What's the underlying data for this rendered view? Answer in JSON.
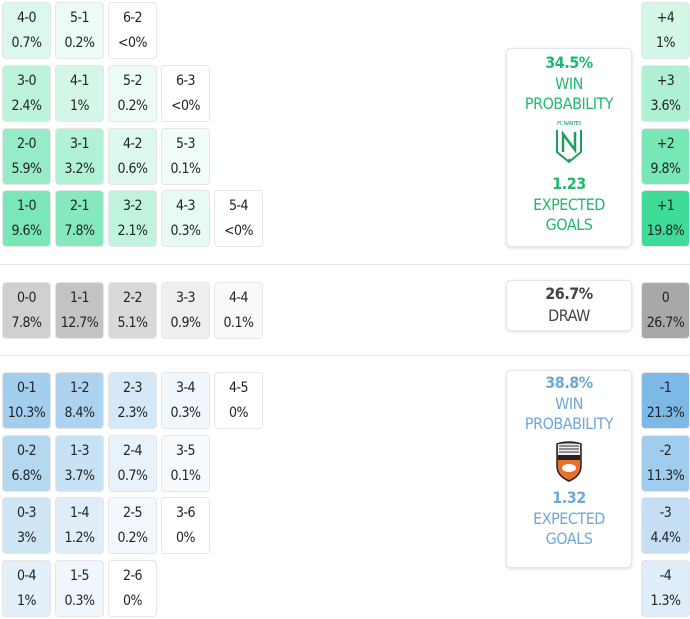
{
  "colors": {
    "home": "#3ddc97",
    "away": "#7ab8e6",
    "draw": "#a8a8a8",
    "home_text": "#22b86e",
    "away_text": "#6fa8d8",
    "draw_text": "#444444"
  },
  "home": {
    "rows": [
      [
        {
          "score": "4-0",
          "pct": "0.7%"
        },
        {
          "score": "5-1",
          "pct": "0.2%"
        },
        {
          "score": "6-2",
          "pct": "<0%"
        }
      ],
      [
        {
          "score": "3-0",
          "pct": "2.4%"
        },
        {
          "score": "4-1",
          "pct": "1%"
        },
        {
          "score": "5-2",
          "pct": "0.2%"
        },
        {
          "score": "6-3",
          "pct": "<0%"
        }
      ],
      [
        {
          "score": "2-0",
          "pct": "5.9%"
        },
        {
          "score": "3-1",
          "pct": "3.2%"
        },
        {
          "score": "4-2",
          "pct": "0.6%"
        },
        {
          "score": "5-3",
          "pct": "0.1%"
        }
      ],
      [
        {
          "score": "1-0",
          "pct": "9.6%"
        },
        {
          "score": "2-1",
          "pct": "7.8%"
        },
        {
          "score": "3-2",
          "pct": "2.1%"
        },
        {
          "score": "4-3",
          "pct": "0.3%"
        },
        {
          "score": "5-4",
          "pct": "<0%"
        }
      ]
    ],
    "margins": [
      {
        "label": "+4",
        "pct": "1%"
      },
      {
        "label": "+3",
        "pct": "3.6%"
      },
      {
        "label": "+2",
        "pct": "9.8%"
      },
      {
        "label": "+1",
        "pct": "19.8%"
      }
    ],
    "win_pct": "34.5%",
    "win_label": "WIN PROBABILITY",
    "team_logo_text": "FC NANTES",
    "xg": "1.23",
    "xg_label": "EXPECTED GOALS"
  },
  "draw": {
    "rows": [
      [
        {
          "score": "0-0",
          "pct": "7.8%"
        },
        {
          "score": "1-1",
          "pct": "12.7%"
        },
        {
          "score": "2-2",
          "pct": "5.1%"
        },
        {
          "score": "3-3",
          "pct": "0.9%"
        },
        {
          "score": "4-4",
          "pct": "0.1%"
        }
      ]
    ],
    "margins": [
      {
        "label": "0",
        "pct": "26.7%"
      }
    ],
    "pct": "26.7%",
    "label": "DRAW"
  },
  "away": {
    "rows": [
      [
        {
          "score": "0-1",
          "pct": "10.3%"
        },
        {
          "score": "1-2",
          "pct": "8.4%"
        },
        {
          "score": "2-3",
          "pct": "2.3%"
        },
        {
          "score": "3-4",
          "pct": "0.3%"
        },
        {
          "score": "4-5",
          "pct": "0%"
        }
      ],
      [
        {
          "score": "0-2",
          "pct": "6.8%"
        },
        {
          "score": "1-3",
          "pct": "3.7%"
        },
        {
          "score": "2-4",
          "pct": "0.7%"
        },
        {
          "score": "3-5",
          "pct": "0.1%"
        }
      ],
      [
        {
          "score": "0-3",
          "pct": "3%"
        },
        {
          "score": "1-4",
          "pct": "1.2%"
        },
        {
          "score": "2-5",
          "pct": "0.2%"
        },
        {
          "score": "3-6",
          "pct": "0%"
        }
      ],
      [
        {
          "score": "0-4",
          "pct": "1%"
        },
        {
          "score": "1-5",
          "pct": "0.3%"
        },
        {
          "score": "2-6",
          "pct": "0%"
        }
      ]
    ],
    "margins": [
      {
        "label": "-1",
        "pct": "21.3%"
      },
      {
        "label": "-2",
        "pct": "11.3%"
      },
      {
        "label": "-3",
        "pct": "4.4%"
      },
      {
        "label": "-4",
        "pct": "1.3%"
      }
    ],
    "win_pct": "38.8%",
    "win_label": "WIN PROBABILITY",
    "team_logo_text": "FC LORIENT",
    "xg": "1.32",
    "xg_label": "EXPECTED GOALS"
  }
}
